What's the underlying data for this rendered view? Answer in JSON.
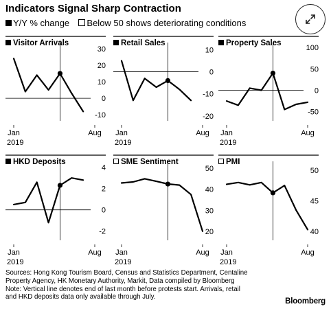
{
  "header": {
    "title": "Indicators Signal Sharp Contraction",
    "legend_filled": "Y/Y % change",
    "legend_open": "Below 50 shows deteriorating conditions"
  },
  "footer": {
    "sources_line1": "Sources: Hong Kong Tourism Board, Census and Statistics Department, Centaline",
    "sources_line2": "Property Agency, HK Monetary Authority, Markit, Data compiled by Bloomberg",
    "note_line1": "Note: Vertical line denotes end of last month before protests start. Arrivals, retail",
    "note_line2": "and HKD deposits data only available through July.",
    "brand": "Bloomberg"
  },
  "icons": {
    "expand": "expand-arrows-icon"
  },
  "chart_data": [
    {
      "type": "line",
      "title": "Visitor Arrivals",
      "marker": "filled",
      "x": [
        1,
        2,
        3,
        4,
        5,
        6,
        7
      ],
      "values": [
        24,
        4,
        14,
        5,
        15,
        3,
        -8
      ],
      "highlight_index": 4,
      "ylim": [
        -12,
        32
      ],
      "yticks": [
        30,
        20,
        10,
        0,
        -10
      ],
      "zero_line": 0,
      "xtick_labels": [
        "Jan",
        "Aug"
      ],
      "year_label": "2019"
    },
    {
      "type": "line",
      "title": "Retail Sales",
      "marker": "filled",
      "x": [
        1,
        2,
        3,
        4,
        5,
        6,
        7
      ],
      "values": [
        5,
        -13,
        -3,
        -7,
        -4,
        -8,
        -13
      ],
      "highlight_index": 4,
      "ylim": [
        -21,
        12
      ],
      "yticks": [
        10,
        0,
        -10,
        -20
      ],
      "zero_line": 0,
      "xtick_labels": [
        "Jan",
        "Aug"
      ],
      "year_label": "2019"
    },
    {
      "type": "line",
      "title": "Property Sales",
      "marker": "filled",
      "x": [
        1,
        2,
        3,
        4,
        5,
        6,
        7,
        8
      ],
      "values": [
        -25,
        -35,
        5,
        0,
        40,
        -45,
        -33,
        -28
      ],
      "highlight_index": 4,
      "ylim": [
        -65,
        105
      ],
      "yticks": [
        100,
        50,
        0,
        -50
      ],
      "zero_line": 0,
      "xtick_labels": [
        "Jan",
        "Aug"
      ],
      "year_label": "2019"
    },
    {
      "type": "line",
      "title": "HKD Deposits",
      "marker": "filled",
      "x": [
        1,
        2,
        3,
        4,
        5,
        6,
        7
      ],
      "values": [
        0.5,
        0.7,
        2.6,
        -1.2,
        2.3,
        3.0,
        2.8
      ],
      "highlight_index": 4,
      "ylim": [
        -2.6,
        4.3
      ],
      "yticks": [
        4,
        2,
        0,
        -2
      ],
      "zero_line": 0,
      "xtick_labels": [
        "Jan",
        "Aug"
      ],
      "year_label": "2019"
    },
    {
      "type": "line",
      "title": "SME Sentiment",
      "marker": "open",
      "x": [
        1,
        2,
        3,
        4,
        5,
        6,
        7,
        8
      ],
      "values": [
        43,
        43.5,
        45,
        43.8,
        42.5,
        42,
        37.5,
        20
      ],
      "highlight_index": 4,
      "ylim": [
        17,
        52
      ],
      "yticks": [
        50,
        40,
        30,
        20
      ],
      "zero_line": null,
      "xtick_labels": [
        "Jan",
        "Aug"
      ],
      "year_label": "2019"
    },
    {
      "type": "line",
      "title": "PMI",
      "marker": "open",
      "x": [
        1,
        2,
        3,
        4,
        5,
        6,
        7,
        8
      ],
      "values": [
        47.7,
        48,
        47.6,
        48,
        46.3,
        47.5,
        43.5,
        40.3
      ],
      "highlight_index": 4,
      "ylim": [
        39,
        51
      ],
      "yticks": [
        50,
        45,
        40
      ],
      "zero_line": null,
      "xtick_labels": [
        "Jan",
        "Aug"
      ],
      "year_label": "2019"
    }
  ]
}
